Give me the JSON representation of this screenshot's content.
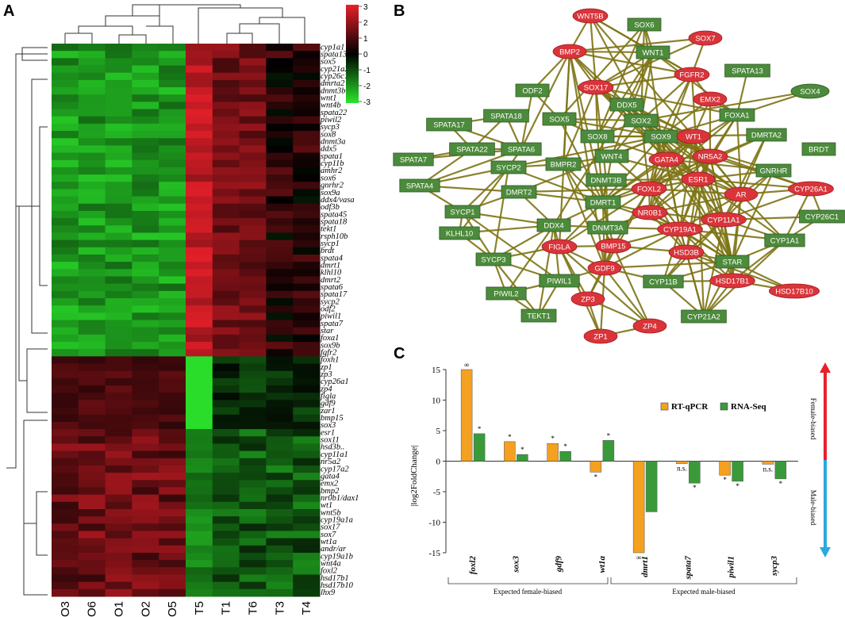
{
  "panels": {
    "a": "A",
    "b": "B",
    "c": "C"
  },
  "heatmap": {
    "type": "heatmap",
    "samples": [
      "O3",
      "O6",
      "O1",
      "O2",
      "O5",
      "T5",
      "T1",
      "T6",
      "T3",
      "T4"
    ],
    "genes": [
      "cyp1a1",
      "spata13",
      "sox5",
      "cyp21a2",
      "cyp26c1",
      "dmrta2",
      "dnmt3b",
      "wnt1",
      "wnt4b",
      "spata22",
      "piwil2",
      "sycp3",
      "sox8",
      "dnmt3a",
      "ddx5",
      "spata1",
      "cyp11b",
      "amhr2",
      "sox6",
      "gnrhr2",
      "sox9a",
      "ddx4/vasa",
      "odf3b",
      "spata45",
      "spata18",
      "tekt1",
      "rsph10b",
      "sycp1",
      "brdt",
      "spata4",
      "dmrt1",
      "klhl10",
      "dmrt2",
      "spata6",
      "spata17",
      "sycp2",
      "odf2",
      "piwil1",
      "spata7",
      "star",
      "foxa1",
      "sox9b",
      "fgfr2",
      "foxh1",
      "zp1",
      "zp3",
      "cyp26a1",
      "zp4",
      "figla",
      "gdf9",
      "zar1",
      "bmp15",
      "sox3",
      "esr1",
      "sox11",
      "hsd3b..",
      "cyp11a1",
      "nr5a2",
      "cyp17a2",
      "gata4",
      "emx2",
      "bmp2",
      "nr0b1/dax1",
      "wt1",
      "wnt5b",
      "cyp19a1a",
      "sox17",
      "sox7",
      "wt1a",
      "andr/ar",
      "cyp19a1b",
      "wnt4a",
      "foxl2",
      "hsd17b1",
      "hsd17b10",
      "lhx9"
    ],
    "colorbar": {
      "ticks": [
        "3",
        "2",
        "1",
        "0",
        "-1",
        "-2",
        "-3"
      ],
      "range": [
        -3,
        3
      ],
      "high_color": "#e8202a",
      "mid_color": "#000000",
      "low_color": "#2be52b"
    }
  },
  "network": {
    "female_nodes": [
      "WNT5B",
      "SOX7",
      "BMP2",
      "FGFR2",
      "SOX17",
      "EMX2",
      "WT1",
      "GATA4",
      "NR5A2",
      "ESR1",
      "FOXL2",
      "AR",
      "CYP26A1",
      "NR0B1",
      "CYP11A1",
      "CYP19A1",
      "FIGLA",
      "BMP15",
      "HSD3B",
      "GDF9",
      "HSD17B1",
      "HSD17B10",
      "ZP3",
      "ZP4",
      "ZP1"
    ],
    "male_nodes": [
      "SOX6",
      "WNT1",
      "SPATA13",
      "SOX4",
      "ODF2",
      "DDX5",
      "FOXA1",
      "SPATA17",
      "SPATA18",
      "SOX5",
      "SOX2",
      "SPATA22",
      "SPATA6",
      "SOX8",
      "SOX9",
      "DMRTA2",
      "BRDT",
      "SPATA7",
      "SYCP2",
      "BMPR2",
      "WNT4",
      "GNRHR",
      "SPATA4",
      "DMRT2",
      "DNMT3B",
      "SYCP1",
      "DMRT1",
      "CYP26C1",
      "KLHL10",
      "DDX4",
      "DNMT3A",
      "CYP1A1",
      "SYCP3",
      "STAR",
      "PIWIL1",
      "CYP11B",
      "PIWIL2",
      "TEKT1",
      "CYP21A2"
    ],
    "female_color": "#d9343a",
    "male_color": "#4c8a3c",
    "edge_color": "#7d7414"
  },
  "chart_data": {
    "type": "bar",
    "ylabel": "|log2FoldChange|",
    "ylim": [
      -15,
      15
    ],
    "yticks": [
      "15",
      "10",
      "5",
      "0",
      "-5",
      "-10",
      "-15"
    ],
    "categories": [
      "foxl2",
      "sox3",
      "gdf9",
      "wt1a",
      "dmrt1",
      "spata7",
      "piwil1",
      "sycp3"
    ],
    "series": [
      {
        "name": "RT-qPCR",
        "color": "#f4a020",
        "values": [
          15,
          3.2,
          2.9,
          -1.8,
          -15,
          -0.4,
          -2.3,
          -0.5
        ]
      },
      {
        "name": "RNA-Seq",
        "color": "#3a9a3a",
        "values": [
          4.5,
          1.1,
          1.6,
          3.4,
          -8.3,
          -3.6,
          -3.3,
          -2.9
        ]
      }
    ],
    "annotations": {
      "rt": [
        "∞",
        "*",
        "*",
        "*",
        "∞",
        "n.s.",
        "*",
        "n.s."
      ],
      "rna": [
        "*",
        "*",
        "*",
        "*",
        "",
        "*",
        "*",
        "*"
      ]
    },
    "group_labels": [
      "Expected female-biased",
      "Expected male-biased"
    ],
    "side_labels": {
      "female": "Female-biased",
      "male": "Male-biased"
    }
  }
}
